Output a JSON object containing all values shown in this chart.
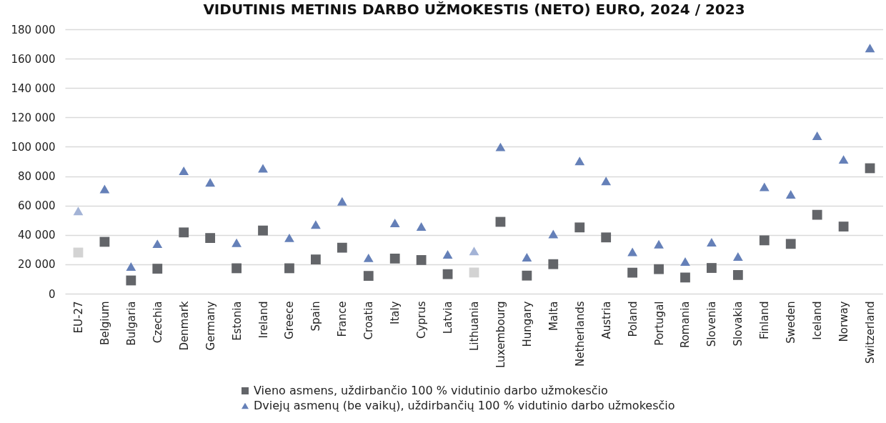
{
  "chart_data": {
    "type": "scatter",
    "title": "VIDUTINIS METINIS DARBO UŽMOKESTIS (NETO) EURO, 2024 / 2023",
    "categories": [
      "EU-27",
      "Belgium",
      "Bulgaria",
      "Czechia",
      "Denmark",
      "Germany",
      "Estonia",
      "Ireland",
      "Greece",
      "Spain",
      "France",
      "Croatia",
      "Italy",
      "Cyprus",
      "Latvia",
      "Lithuania",
      "Luxembourg",
      "Hungary",
      "Malta",
      "Netherlands",
      "Austria",
      "Poland",
      "Portugal",
      "Romania",
      "Slovenia",
      "Slovakia",
      "Finland",
      "Sweden",
      "Iceland",
      "Norway",
      "Switzerland"
    ],
    "series": [
      {
        "name": "Vieno asmens, uždirbančio 100 % vidutinio darbo užmokesčio",
        "color": "#636569",
        "marker": "square",
        "colors": [
          "#d3d3d3",
          "#636569",
          "#636569",
          "#636569",
          "#636569",
          "#636569",
          "#636569",
          "#636569",
          "#636569",
          "#636569",
          "#636569",
          "#636569",
          "#636569",
          "#636569",
          "#636569",
          "#d3d3d3",
          "#636569",
          "#636569",
          "#636569",
          "#636569",
          "#636569",
          "#636569",
          "#636569",
          "#636569",
          "#636569",
          "#636569",
          "#636569",
          "#636569",
          "#636569",
          "#636569",
          "#636569"
        ],
        "values": [
          28000,
          35300,
          9000,
          17000,
          41700,
          37900,
          17300,
          43000,
          17300,
          23300,
          31300,
          12100,
          23900,
          22900,
          13300,
          14400,
          48900,
          12300,
          20100,
          45100,
          38300,
          14300,
          16700,
          11000,
          17500,
          12700,
          36300,
          33900,
          53700,
          45700,
          85400
        ]
      },
      {
        "name": "Dviejų asmenų (be vaikų), uždirbančių 100 % vidutinio darbo užmokesčio",
        "color": "#6580b8",
        "marker": "triangle",
        "colors": [
          "#a3b3d6",
          "#6580b8",
          "#6580b8",
          "#6580b8",
          "#6580b8",
          "#6580b8",
          "#6580b8",
          "#6580b8",
          "#6580b8",
          "#6580b8",
          "#6580b8",
          "#6580b8",
          "#6580b8",
          "#6580b8",
          "#6580b8",
          "#a3b3d6",
          "#6580b8",
          "#6580b8",
          "#6580b8",
          "#6580b8",
          "#6580b8",
          "#6580b8",
          "#6580b8",
          "#6580b8",
          "#6580b8",
          "#6580b8",
          "#6580b8",
          "#6580b8",
          "#6580b8",
          "#6580b8",
          "#6580b8"
        ],
        "values": [
          56300,
          71300,
          18500,
          34000,
          83700,
          75800,
          34700,
          85400,
          38000,
          47100,
          62900,
          24400,
          48200,
          45700,
          26800,
          29100,
          99900,
          24800,
          40600,
          90400,
          76700,
          28500,
          33700,
          21900,
          35000,
          25300,
          72700,
          67600,
          107500,
          91400,
          167200
        ]
      }
    ],
    "ylim": [
      0,
      180000
    ],
    "yticks": [
      {
        "value": 0,
        "label": "0"
      },
      {
        "value": 20000,
        "label": "20 000"
      },
      {
        "value": 40000,
        "label": "40 000"
      },
      {
        "value": 60000,
        "label": "60 000"
      },
      {
        "value": 80000,
        "label": "80 000"
      },
      {
        "value": 100000,
        "label": "100 000"
      },
      {
        "value": 120000,
        "label": "120 000"
      },
      {
        "value": 140000,
        "label": "140 000"
      },
      {
        "value": 160000,
        "label": "160 000"
      },
      {
        "value": 180000,
        "label": "180 000"
      }
    ],
    "grid": "y",
    "legend": "bottom"
  }
}
